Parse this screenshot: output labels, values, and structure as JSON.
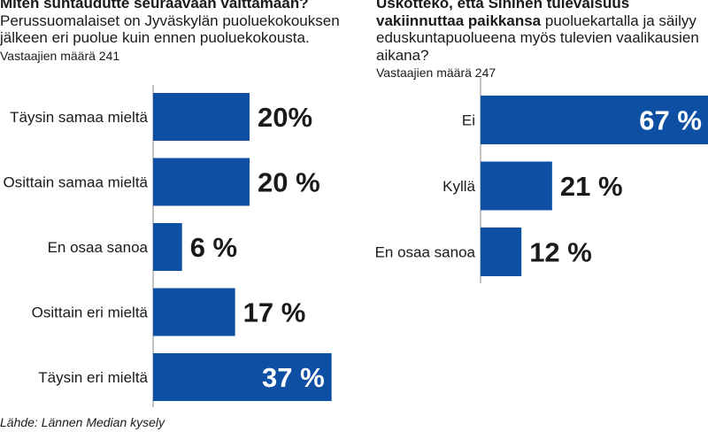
{
  "colors": {
    "bar": "#0d4fa3",
    "text": "#1a1a1a",
    "inside_label": "#ffffff"
  },
  "chart_data": [
    {
      "type": "bar",
      "orientation": "horizontal",
      "title": "Miten suhtaudutte seuraavaan väittämään?",
      "subtitle": "Perussuomalaiset on Jyväskylän puoluekokouksen jälkeen eri puolue kuin ennen puoluekokousta.",
      "respondents": "Vastaajien määrä 241",
      "categories": [
        "Täysin samaa mieltä",
        "Osittain samaa mieltä",
        "En osaa sanoa",
        "Osittain eri mieltä",
        "Täysin eri mieltä"
      ],
      "values": [
        20,
        20,
        6,
        17,
        37
      ],
      "value_labels": [
        "20%",
        "20 %",
        "6 %",
        "17 %",
        "37 %"
      ],
      "unit": "%",
      "xlim": [
        0,
        100
      ]
    },
    {
      "type": "bar",
      "orientation": "horizontal",
      "title": "Uskotteko, että Sininen tulevaisuus vakiinnuttaa paikkansa",
      "subtitle": "puoluekartalla ja säilyy eduskuntapuolueena myös tulevien vaalikausien aikana?",
      "respondents": "Vastaajien määrä 247",
      "categories": [
        "Ei",
        "Kyllä",
        "En osaa sanoa"
      ],
      "values": [
        67,
        21,
        12
      ],
      "value_labels": [
        "67 %",
        "21 %",
        "12 %"
      ],
      "unit": "%",
      "xlim": [
        0,
        100
      ]
    }
  ],
  "source": "Lähde: Lännen Median kysely"
}
